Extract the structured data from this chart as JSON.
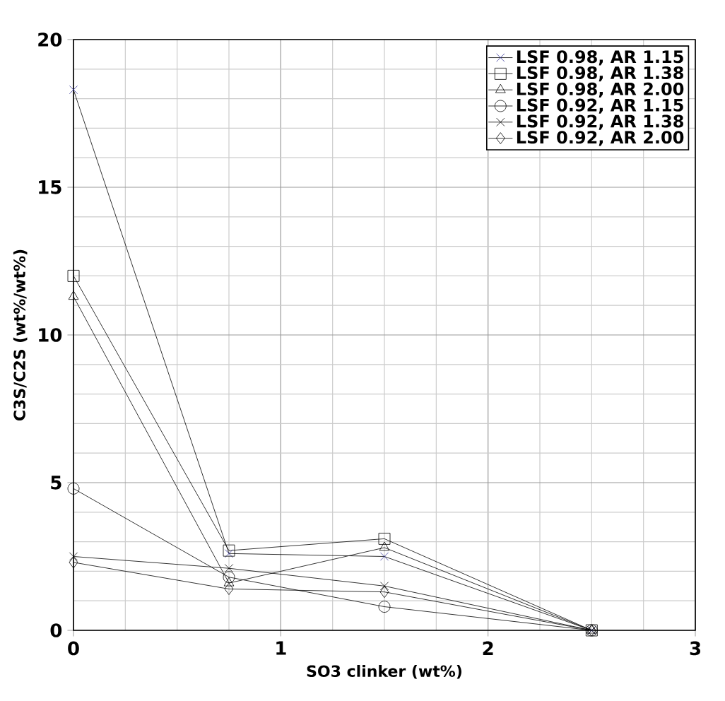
{
  "chart_data": {
    "type": "line",
    "xlabel": "SO3 clinker (wt%)",
    "ylabel": "C3S/C2S (wt%/wt%)",
    "xlim": [
      0,
      3
    ],
    "ylim": [
      0,
      20
    ],
    "xticks": [
      0,
      1,
      2,
      3
    ],
    "yticks": [
      0,
      5,
      10,
      15,
      20
    ],
    "grid": true,
    "legend": "top right",
    "x": [
      0,
      0.75,
      1.5,
      2.5
    ],
    "series": [
      {
        "name": "LSF 0.98, AR 1.15",
        "color": "#333399",
        "marker": "cross",
        "values": [
          18.3,
          2.6,
          2.5,
          0
        ]
      },
      {
        "name": "LSF 0.98, AR 1.38",
        "color": "#000000",
        "marker": "square",
        "values": [
          12.0,
          2.7,
          3.1,
          0
        ]
      },
      {
        "name": "LSF 0.98, AR 2.00",
        "color": "#000000",
        "marker": "triangle",
        "values": [
          11.3,
          1.6,
          2.8,
          0
        ]
      },
      {
        "name": "LSF 0.92, AR 1.15",
        "color": "#000000",
        "marker": "circle",
        "values": [
          4.8,
          1.8,
          0.8,
          0
        ]
      },
      {
        "name": "LSF 0.92, AR 1.38",
        "color": "#000000",
        "marker": "cross",
        "values": [
          2.5,
          2.1,
          1.5,
          0
        ]
      },
      {
        "name": "LSF 0.92, AR 2.00",
        "color": "#000000",
        "marker": "diamond",
        "values": [
          2.3,
          1.4,
          1.3,
          0
        ]
      }
    ]
  }
}
